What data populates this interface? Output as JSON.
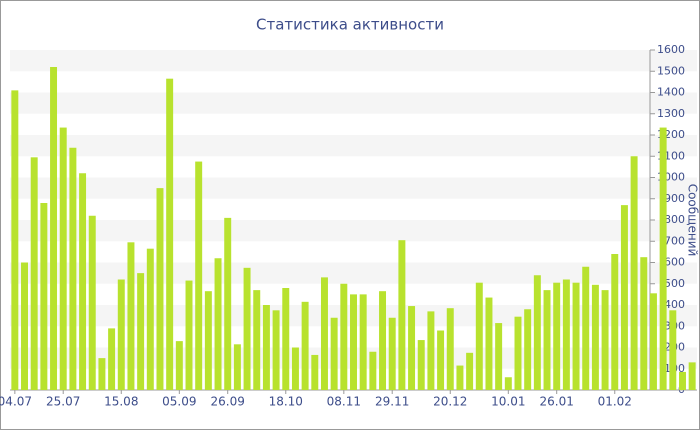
{
  "chart_data": {
    "type": "bar",
    "title": "Статистика активности",
    "y_label": "Сообщений",
    "categories": [
      "04.07",
      null,
      null,
      null,
      null,
      "25.07",
      null,
      null,
      null,
      null,
      null,
      "15.08",
      null,
      null,
      null,
      null,
      null,
      "05.09",
      null,
      null,
      null,
      null,
      "26.09",
      null,
      null,
      null,
      null,
      null,
      "18.10",
      null,
      null,
      null,
      null,
      null,
      "08.11",
      null,
      null,
      null,
      null,
      "29.11",
      null,
      null,
      null,
      null,
      null,
      "20.12",
      null,
      null,
      null,
      null,
      null,
      "10.01",
      null,
      null,
      null,
      null,
      "26.01",
      null,
      null,
      null,
      null,
      null,
      "01.02",
      null,
      null,
      null,
      null,
      null,
      null,
      null,
      null
    ],
    "values": [
      1410,
      600,
      1095,
      880,
      1520,
      1235,
      1140,
      1020,
      820,
      150,
      290,
      520,
      695,
      550,
      665,
      950,
      1465,
      230,
      515,
      1075,
      465,
      620,
      810,
      215,
      575,
      470,
      400,
      375,
      480,
      200,
      415,
      165,
      530,
      340,
      500,
      450,
      450,
      180,
      465,
      340,
      705,
      395,
      235,
      370,
      280,
      385,
      115,
      175,
      505,
      435,
      315,
      60,
      345,
      380,
      540,
      470,
      505,
      520,
      505,
      580,
      495,
      470,
      640,
      870,
      1100,
      625,
      455,
      1235,
      375,
      85,
      130
    ],
    "color": "#b8e22e",
    "ylim": [
      0,
      1600
    ],
    "yticks": [
      0,
      100,
      200,
      300,
      400,
      500,
      600,
      700,
      800,
      900,
      1000,
      1100,
      1200,
      1300,
      1400,
      1500,
      1600
    ],
    "grid": true
  }
}
